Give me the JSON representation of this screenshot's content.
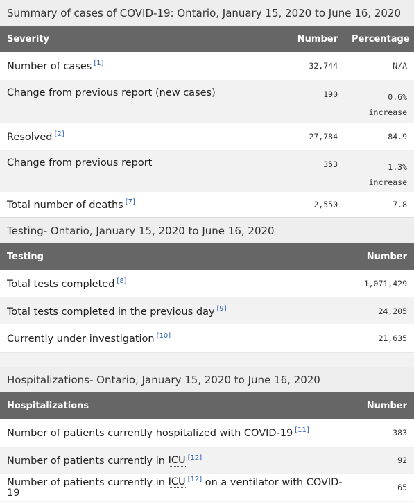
{
  "summary": {
    "caption": "Summary of cases of COVID-19: Ontario, January 15, 2020 to June 16, 2020",
    "headers": {
      "severity": "Severity",
      "number": "Number",
      "percentage": "Percentage"
    },
    "rows": [
      {
        "label": "Number of cases",
        "ref": "[1]",
        "number": "32,744",
        "pct": "N/A",
        "pct2": ""
      },
      {
        "label": "Change from previous report (new cases)",
        "ref": "",
        "number": "190",
        "pct": "0.6%",
        "pct2": "increase"
      },
      {
        "label": "Resolved",
        "ref": "[2]",
        "number": "27,784",
        "pct": "84.9",
        "pct2": ""
      },
      {
        "label": "Change from previous report",
        "ref": "",
        "number": "353",
        "pct": "1.3%",
        "pct2": "increase"
      },
      {
        "label": "Total number of deaths",
        "ref": "[7]",
        "number": "2,550",
        "pct": "7.8",
        "pct2": ""
      }
    ]
  },
  "testing": {
    "caption_bold": "Testing",
    "caption_rest": " - Ontario, January 15, 2020 to June 16, 2020",
    "headers": {
      "testing": "Testing",
      "number": "Number"
    },
    "rows": [
      {
        "label": "Total tests completed",
        "ref": "[8]",
        "number": "1,071,429"
      },
      {
        "label": "Total tests completed in the previous day",
        "ref": "[9]",
        "number": "24,205"
      },
      {
        "label": "Currently under investigation",
        "ref": "[10]",
        "number": "21,635"
      }
    ]
  },
  "hospitalizations": {
    "caption_bold": "Hospitalizations",
    "caption_rest": " - Ontario, January 15, 2020 to June 16, 2020",
    "headers": {
      "hospitalizations": "Hospitalizations",
      "number": "Number"
    },
    "rows": [
      {
        "label": "Number of patients currently hospitalized with COVID-19",
        "ref": "[11]",
        "number": "383"
      },
      {
        "label_pre": "Number of patients currently in ",
        "abbr": "ICU",
        "ref": "[12]",
        "label_post": "",
        "number": "92"
      },
      {
        "label_pre": "Number of patients currently in ",
        "abbr": "ICU",
        "ref": "[12]",
        "label_post": " on a ventilator with COVID-19",
        "number": "65"
      }
    ]
  }
}
